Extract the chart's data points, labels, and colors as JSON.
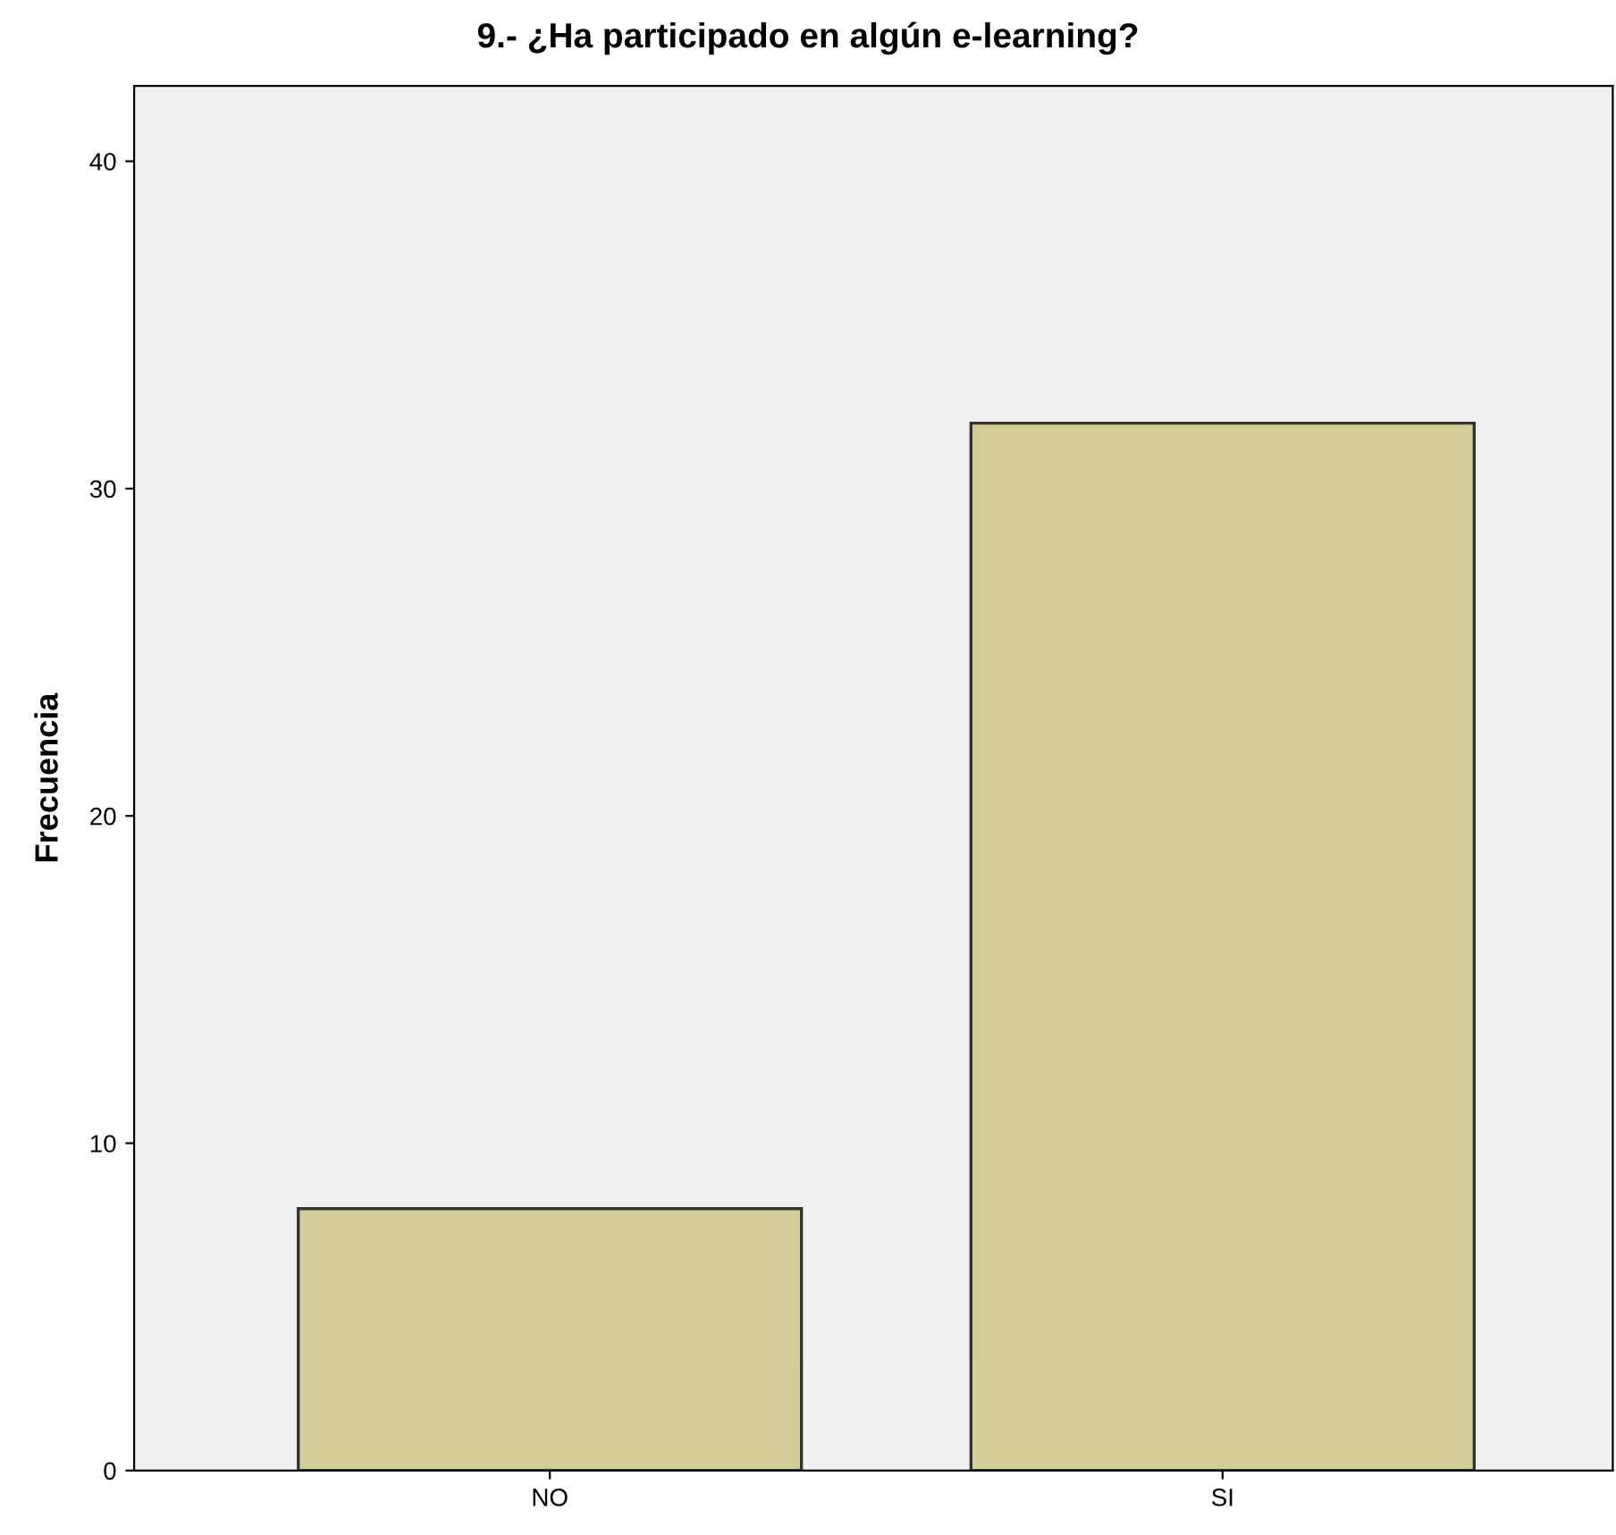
{
  "chart_data": {
    "type": "bar",
    "title": "9.- ¿Ha participado en algún e-learning?",
    "ylabel": "Frecuencia",
    "categories": [
      "NO",
      "SI"
    ],
    "values": [
      8,
      32
    ],
    "color": "#d3ce97",
    "ylim": [
      0,
      42.3
    ],
    "yticks": [
      0,
      10,
      20,
      30,
      40
    ],
    "grid": false,
    "legend": false
  }
}
